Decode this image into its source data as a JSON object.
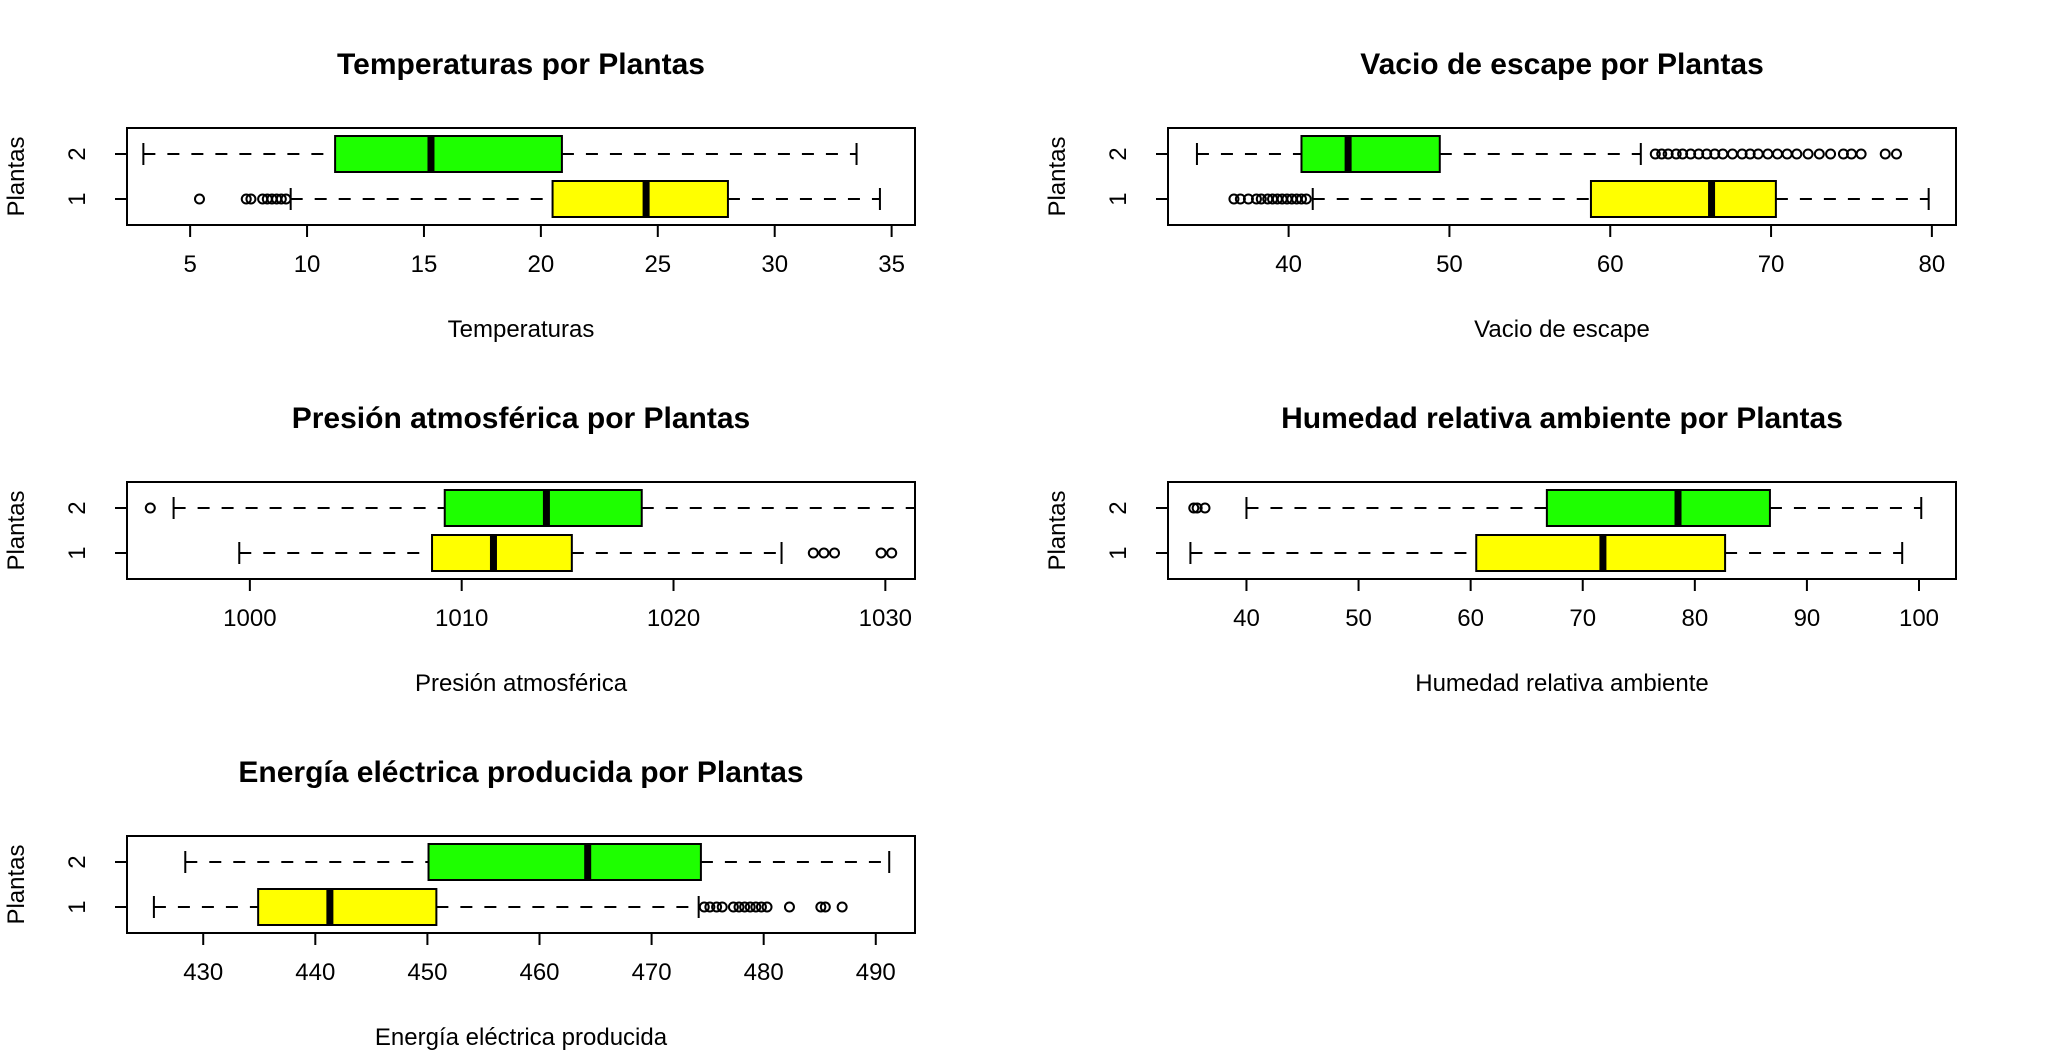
{
  "chart_data": [
    {
      "type": "boxplot",
      "orientation": "horizontal",
      "title": "Temperaturas por Plantas",
      "xlabel": "Temperaturas",
      "ylabel": "Plantas",
      "xlim": [
        2.3,
        36.0
      ],
      "xticks": [
        5,
        10,
        15,
        20,
        25,
        30,
        35
      ],
      "xtick_labels": [
        "5",
        "10",
        "15",
        "20",
        "25",
        "30",
        "35"
      ],
      "categories": [
        "1",
        "2"
      ],
      "colors": {
        "1": "#ffff00",
        "2": "#1eff00"
      },
      "series": [
        {
          "category": "1",
          "whisker_low": 9.3,
          "q1": 20.5,
          "median": 24.5,
          "q3": 28.0,
          "whisker_high": 34.5,
          "outliers": [
            5.4,
            7.4,
            7.6,
            8.1,
            8.3,
            8.5,
            8.7,
            8.9,
            9.1
          ]
        },
        {
          "category": "2",
          "whisker_low": 3.0,
          "q1": 11.2,
          "median": 15.3,
          "q3": 20.9,
          "whisker_high": 33.5,
          "outliers": []
        }
      ]
    },
    {
      "type": "boxplot",
      "orientation": "horizontal",
      "title": "Vacio de escape por Plantas",
      "xlabel": "Vacio de escape",
      "ylabel": "Plantas",
      "xlim": [
        32.5,
        81.5
      ],
      "xticks": [
        40,
        50,
        60,
        70,
        80
      ],
      "xtick_labels": [
        "40",
        "50",
        "60",
        "70",
        "80"
      ],
      "categories": [
        "1",
        "2"
      ],
      "colors": {
        "1": "#ffff00",
        "2": "#1eff00"
      },
      "series": [
        {
          "category": "1",
          "whisker_low": 41.5,
          "q1": 58.8,
          "median": 66.3,
          "q3": 70.3,
          "whisker_high": 79.8,
          "outliers": [
            36.6,
            37.0,
            37.5,
            38.0,
            38.3,
            38.7,
            39.0,
            39.3,
            39.6,
            39.9,
            40.2,
            40.5,
            40.8,
            41.1
          ]
        },
        {
          "category": "2",
          "whisker_low": 34.3,
          "q1": 40.8,
          "median": 43.7,
          "q3": 49.4,
          "whisker_high": 61.9,
          "outliers": [
            62.8,
            63.2,
            63.6,
            64.1,
            64.5,
            65.0,
            65.5,
            66.0,
            66.5,
            67.0,
            67.6,
            68.2,
            68.7,
            69.2,
            69.8,
            70.4,
            71.0,
            71.6,
            72.3,
            73.0,
            73.7,
            74.5,
            75.0,
            75.6,
            77.1,
            77.8
          ]
        }
      ]
    },
    {
      "type": "boxplot",
      "orientation": "horizontal",
      "title": "Presión atmosférica por Plantas",
      "xlabel": "Presión atmosférica",
      "ylabel": "Plantas",
      "xlim": [
        994.2,
        1031.4
      ],
      "xticks": [
        1000,
        1010,
        1020,
        1030
      ],
      "xtick_labels": [
        "1000",
        "1010",
        "1020",
        "1030"
      ],
      "categories": [
        "1",
        "2"
      ],
      "colors": {
        "1": "#ffff00",
        "2": "#1eff00"
      },
      "series": [
        {
          "category": "1",
          "whisker_low": 999.5,
          "q1": 1008.6,
          "median": 1011.5,
          "q3": 1015.2,
          "whisker_high": 1025.1,
          "outliers": [
            1026.6,
            1027.1,
            1027.6,
            1029.8,
            1030.3
          ]
        },
        {
          "category": "2",
          "whisker_low": 996.4,
          "q1": 1009.2,
          "median": 1014.0,
          "q3": 1018.5,
          "whisker_high": 1031.4,
          "outliers": [
            995.3
          ]
        }
      ]
    },
    {
      "type": "boxplot",
      "orientation": "horizontal",
      "title": "Humedad relativa ambiente por Plantas",
      "xlabel": "Humedad relativa ambiente",
      "ylabel": "Plantas",
      "xlim": [
        33.0,
        103.3
      ],
      "xticks": [
        40,
        50,
        60,
        70,
        80,
        90,
        100
      ],
      "xtick_labels": [
        "40",
        "50",
        "60",
        "70",
        "80",
        "90",
        "100"
      ],
      "categories": [
        "1",
        "2"
      ],
      "colors": {
        "1": "#ffff00",
        "2": "#1eff00"
      },
      "series": [
        {
          "category": "1",
          "whisker_low": 35.0,
          "q1": 60.5,
          "median": 71.8,
          "q3": 82.7,
          "whisker_high": 98.5,
          "outliers": []
        },
        {
          "category": "2",
          "whisker_low": 40.0,
          "q1": 66.8,
          "median": 78.5,
          "q3": 86.7,
          "whisker_high": 100.2,
          "outliers": [
            35.3,
            35.6,
            36.3
          ]
        }
      ]
    },
    {
      "type": "boxplot",
      "orientation": "horizontal",
      "title": "Energía eléctrica producida por Plantas",
      "xlabel": "Energía eléctrica producida",
      "ylabel": "Plantas",
      "xlim": [
        423.2,
        493.5
      ],
      "xticks": [
        430,
        440,
        450,
        460,
        470,
        480,
        490
      ],
      "xtick_labels": [
        "430",
        "440",
        "450",
        "460",
        "470",
        "480",
        "490"
      ],
      "categories": [
        "1",
        "2"
      ],
      "colors": {
        "1": "#ffff00",
        "2": "#1eff00"
      },
      "series": [
        {
          "category": "1",
          "whisker_low": 425.6,
          "q1": 434.9,
          "median": 441.3,
          "q3": 450.8,
          "whisker_high": 474.2,
          "outliers": [
            474.7,
            475.2,
            475.8,
            476.3,
            477.3,
            477.8,
            478.3,
            478.8,
            479.3,
            479.8,
            480.3,
            482.3,
            485.1,
            485.5,
            487.0
          ]
        },
        {
          "category": "2",
          "whisker_low": 428.4,
          "q1": 450.1,
          "median": 464.3,
          "q3": 474.4,
          "whisker_high": 491.2,
          "outliers": []
        }
      ]
    }
  ]
}
